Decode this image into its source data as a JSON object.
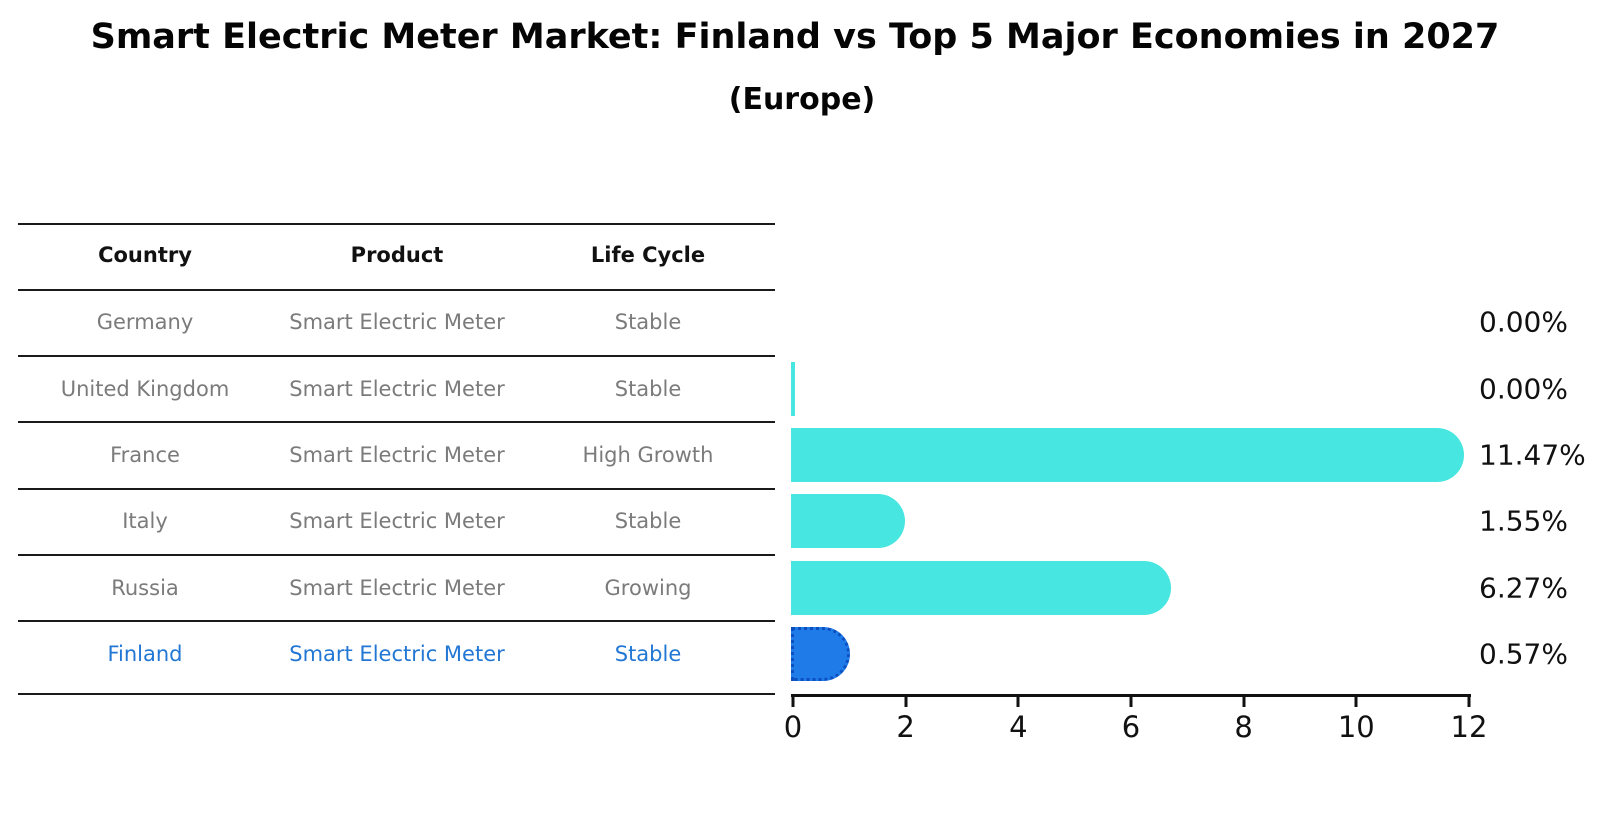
{
  "chart_data": {
    "type": "bar",
    "orientation": "horizontal",
    "title": "Smart Electric Meter Market: Finland vs Top 5 Major Economies in 2027",
    "subtitle": "(Europe)",
    "categories": [
      "Germany",
      "United Kingdom",
      "France",
      "Italy",
      "Russia",
      "Finland"
    ],
    "values": [
      0.0,
      0.0,
      11.47,
      1.55,
      6.27,
      0.57
    ],
    "value_labels": [
      "0.00%",
      "0.00%",
      "11.47%",
      "1.55%",
      "6.27%",
      "0.57%"
    ],
    "xlim": [
      0,
      12
    ],
    "xticks": [
      0,
      2,
      4,
      6,
      8,
      10,
      12
    ],
    "grid": false,
    "legend": "none",
    "bar_color": "#47e6e0",
    "highlight_color": "#1e7be8",
    "highlight_index": 5,
    "sliver_indices": [
      1
    ]
  },
  "table": {
    "headers": [
      "Country",
      "Product",
      "Life Cycle"
    ],
    "rows": [
      {
        "country": "Germany",
        "product": "Smart Electric Meter",
        "life_cycle": "Stable",
        "highlight": false
      },
      {
        "country": "United Kingdom",
        "product": "Smart Electric Meter",
        "life_cycle": "Stable",
        "highlight": false
      },
      {
        "country": "France",
        "product": "Smart Electric Meter",
        "life_cycle": "High Growth",
        "highlight": false
      },
      {
        "country": "Italy",
        "product": "Smart Electric Meter",
        "life_cycle": "Stable",
        "highlight": false
      },
      {
        "country": "Russia",
        "product": "Smart Electric Meter",
        "life_cycle": "Growing",
        "highlight": false
      },
      {
        "country": "Finland",
        "product": "Smart Electric Meter",
        "life_cycle": "Stable",
        "highlight": true
      }
    ]
  },
  "colors": {
    "title_text": "#050505",
    "header_text": "#111111",
    "row_text": "#7b7b7b",
    "highlight_text": "#2277d4",
    "separator_line": "#1a1a1a",
    "axis": "#111111",
    "value_label_text": "#111111"
  }
}
